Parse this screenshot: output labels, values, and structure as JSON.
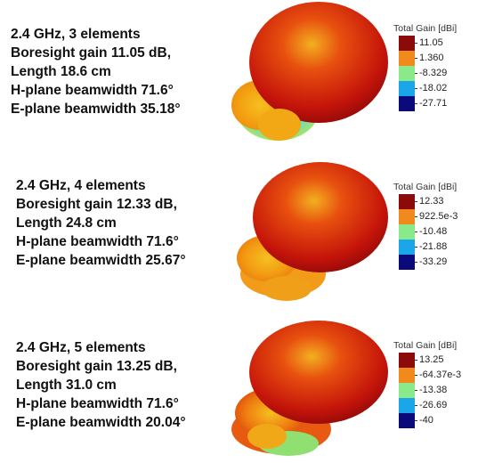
{
  "legend_title": "Total Gain [dBi]",
  "colorscale": [
    "#8b0a0a",
    "#f08a1c",
    "#8aea8a",
    "#1aa6e8",
    "#0a0a7a"
  ],
  "panels": [
    {
      "specs": [
        "2.4 GHz, 3 elements",
        "Boresight gain 11.05 dB,",
        "Length 18.6 cm",
        "H-plane beamwidth 71.6°",
        "E-plane beamwidth 35.18°"
      ],
      "legend_values": [
        "11.05",
        "1.360",
        "-8.329",
        "-18.02",
        "-27.71"
      ]
    },
    {
      "specs": [
        "2.4 GHz, 4 elements",
        "Boresight gain 12.33 dB,",
        "Length 24.8 cm",
        "H-plane beamwidth 71.6°",
        "E-plane beamwidth 25.67°"
      ],
      "legend_values": [
        "12.33",
        "922.5e-3",
        "-10.48",
        "-21.88",
        "-33.29"
      ]
    },
    {
      "specs": [
        "2.4 GHz, 5 elements",
        "Boresight gain 13.25 dB,",
        "Length 31.0 cm",
        "H-plane beamwidth 71.6°",
        "E-plane beamwidth 20.04°"
      ],
      "legend_values": [
        "13.25",
        "-64.37e-3",
        "-13.38",
        "-26.69",
        "-40"
      ]
    }
  ]
}
